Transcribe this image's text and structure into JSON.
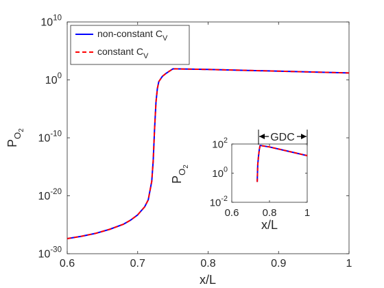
{
  "chart_data": [
    {
      "type": "line",
      "title": "",
      "xlabel": "x/L",
      "ylabel": "P",
      "ylabel_sub": "O",
      "ylabel_subsub": "2",
      "xlim": [
        0.6,
        1.0
      ],
      "ylim_log10": [
        -30,
        10
      ],
      "yscale": "log",
      "grid": false,
      "legend_location": "top-left",
      "x_ticks": [
        {
          "v": 0.6,
          "label": "0.6"
        },
        {
          "v": 0.7,
          "label": "0.7"
        },
        {
          "v": 0.8,
          "label": "0.8"
        },
        {
          "v": 0.9,
          "label": "0.9"
        },
        {
          "v": 1.0,
          "label": "1"
        }
      ],
      "y_ticks": [
        {
          "v": 10,
          "base": "10",
          "exp": "10"
        },
        {
          "v": 0,
          "base": "10",
          "exp": "0"
        },
        {
          "v": -10,
          "base": "10",
          "exp": "-10"
        },
        {
          "v": -20,
          "base": "10",
          "exp": "-20"
        },
        {
          "v": -30,
          "base": "10",
          "exp": "-30"
        }
      ],
      "series": [
        {
          "name": "non-constant C",
          "name_sub": "V",
          "color": "#0000ff",
          "style": "solid",
          "x": [
            0.6,
            0.62,
            0.64,
            0.66,
            0.68,
            0.69,
            0.7,
            0.71,
            0.715,
            0.72,
            0.722,
            0.724,
            0.726,
            0.728,
            0.73,
            0.735,
            0.74,
            0.745,
            0.75,
            0.8,
            0.9,
            1.0
          ],
          "log10_y": [
            -27.4,
            -27.0,
            -26.5,
            -25.8,
            -24.9,
            -24.2,
            -23.3,
            -21.9,
            -20.7,
            -17.5,
            -14.0,
            -8.5,
            -3.8,
            -1.5,
            -0.3,
            0.6,
            1.1,
            1.5,
            1.9,
            1.8,
            1.5,
            1.2
          ]
        },
        {
          "name": "constant C",
          "name_sub": "V",
          "color": "#ff0000",
          "style": "dashed",
          "x": [
            0.6,
            0.62,
            0.64,
            0.66,
            0.68,
            0.69,
            0.7,
            0.71,
            0.715,
            0.72,
            0.722,
            0.724,
            0.726,
            0.728,
            0.73,
            0.735,
            0.74,
            0.745,
            0.75,
            0.8,
            0.9,
            1.0
          ],
          "log10_y": [
            -27.4,
            -27.0,
            -26.5,
            -25.8,
            -24.9,
            -24.2,
            -23.3,
            -21.9,
            -20.7,
            -17.5,
            -14.0,
            -8.5,
            -3.8,
            -1.5,
            -0.3,
            0.6,
            1.1,
            1.5,
            1.9,
            1.8,
            1.5,
            1.2
          ]
        }
      ]
    },
    {
      "type": "line",
      "title": "",
      "xlabel": "x/L",
      "ylabel": "P",
      "ylabel_sub": "O",
      "ylabel_subsub": "2",
      "xlim": [
        0.6,
        1.0
      ],
      "ylim_log10": [
        -2,
        2
      ],
      "yscale": "log",
      "annotation": "GDC",
      "annotation_range": [
        0.75,
        1.0
      ],
      "x_ticks": [
        {
          "v": 0.6,
          "label": "0.6"
        },
        {
          "v": 0.8,
          "label": "0.8"
        },
        {
          "v": 1.0,
          "label": "1"
        }
      ],
      "y_ticks": [
        {
          "v": 2,
          "base": "10",
          "exp": "2"
        },
        {
          "v": 0,
          "base": "10",
          "exp": "0"
        },
        {
          "v": -2,
          "base": "10",
          "exp": "-2"
        }
      ],
      "series": [
        {
          "color": "#0000ff",
          "style": "solid",
          "x": [
            0.735,
            0.738,
            0.742,
            0.746,
            0.75,
            0.8,
            0.9,
            1.0
          ],
          "log10_y": [
            -0.6,
            0.6,
            1.2,
            1.6,
            1.9,
            1.8,
            1.5,
            1.2
          ]
        },
        {
          "color": "#ff0000",
          "style": "dashed",
          "x": [
            0.735,
            0.738,
            0.742,
            0.746,
            0.75,
            0.8,
            0.9,
            1.0
          ],
          "log10_y": [
            -0.6,
            0.6,
            1.2,
            1.6,
            1.9,
            1.8,
            1.5,
            1.2
          ]
        }
      ]
    }
  ]
}
